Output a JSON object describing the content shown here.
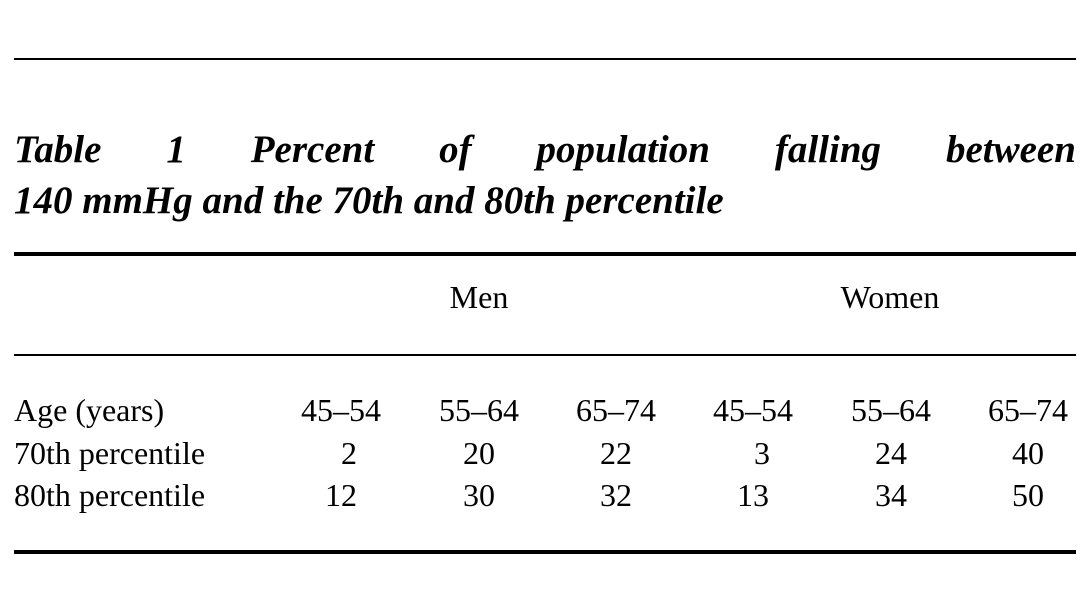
{
  "caption": {
    "line1": [
      "Table",
      "1",
      "Percent",
      "of",
      "population",
      "falling",
      "between"
    ],
    "line2": "140 mmHg and the 70th and 80th percentile"
  },
  "groups": [
    "Men",
    "Women"
  ],
  "rows": [
    {
      "label": "Age (years)",
      "cells": [
        "45–54",
        "55–64",
        "65–74",
        "45–54",
        "55–64",
        "65–74"
      ]
    },
    {
      "label": "70th percentile",
      "cells": [
        "2",
        "20",
        "22",
        "3",
        "24",
        "40"
      ]
    },
    {
      "label": "80th percentile",
      "cells": [
        "12",
        "30",
        "32",
        "13",
        "34",
        "50"
      ]
    }
  ]
}
